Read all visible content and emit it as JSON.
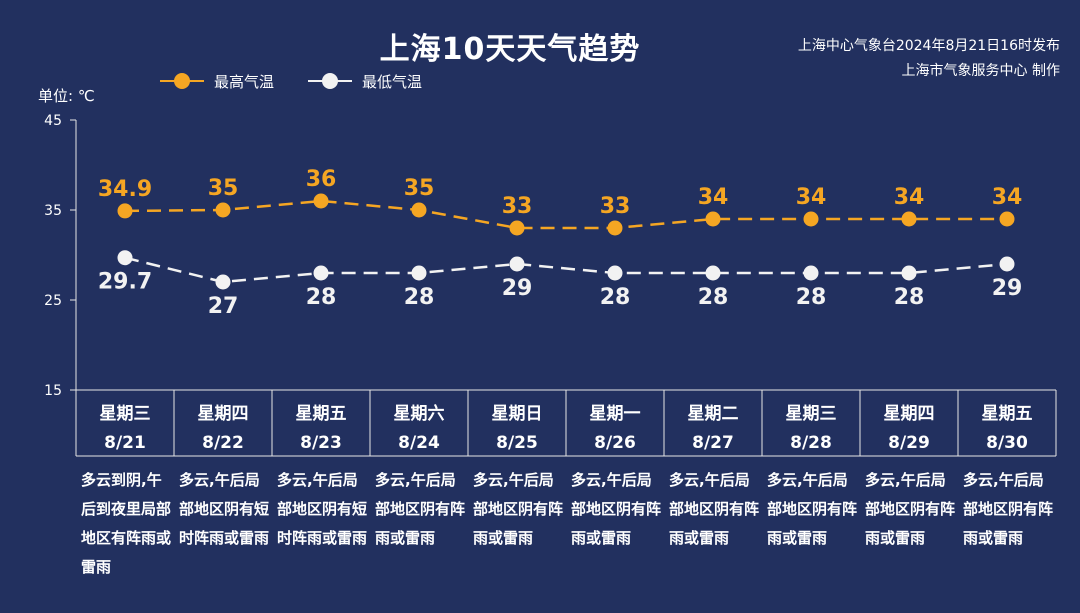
{
  "title": "上海10天天气趋势",
  "source_line1": "上海中心气象台2024年8月21日16时发布",
  "source_line2": "上海市气象服务中心 制作",
  "unit_label": "单位: ℃",
  "colors": {
    "background": "#22305f",
    "high": "#f5a623",
    "low": "#f2f2f2"
  },
  "chart_data": {
    "type": "line",
    "ylim": [
      15,
      45
    ],
    "yticks": [
      15,
      25,
      35,
      45
    ],
    "legend": "top-left",
    "series": [
      {
        "name": "最高气温",
        "values": [
          34.9,
          35,
          36,
          35,
          33,
          33,
          34,
          34,
          34,
          34
        ]
      },
      {
        "name": "最低气温",
        "values": [
          29.7,
          27,
          28,
          28,
          29,
          28,
          28,
          28,
          28,
          29
        ]
      }
    ],
    "days": [
      {
        "week": "星期三",
        "date": "8/21",
        "desc": "多云到阴,午后到夜里局部地区有阵雨或雷雨"
      },
      {
        "week": "星期四",
        "date": "8/22",
        "desc": "多云,午后局部地区阴有短时阵雨或雷雨"
      },
      {
        "week": "星期五",
        "date": "8/23",
        "desc": "多云,午后局部地区阴有短时阵雨或雷雨"
      },
      {
        "week": "星期六",
        "date": "8/24",
        "desc": "多云,午后局部地区阴有阵雨或雷雨"
      },
      {
        "week": "星期日",
        "date": "8/25",
        "desc": "多云,午后局部地区阴有阵雨或雷雨"
      },
      {
        "week": "星期一",
        "date": "8/26",
        "desc": "多云,午后局部地区阴有阵雨或雷雨"
      },
      {
        "week": "星期二",
        "date": "8/27",
        "desc": "多云,午后局部地区阴有阵雨或雷雨"
      },
      {
        "week": "星期三",
        "date": "8/28",
        "desc": "多云,午后局部地区阴有阵雨或雷雨"
      },
      {
        "week": "星期四",
        "date": "8/29",
        "desc": "多云,午后局部地区阴有阵雨或雷雨"
      },
      {
        "week": "星期五",
        "date": "8/30",
        "desc": "多云,午后局部地区阴有阵雨或雷雨"
      }
    ]
  }
}
